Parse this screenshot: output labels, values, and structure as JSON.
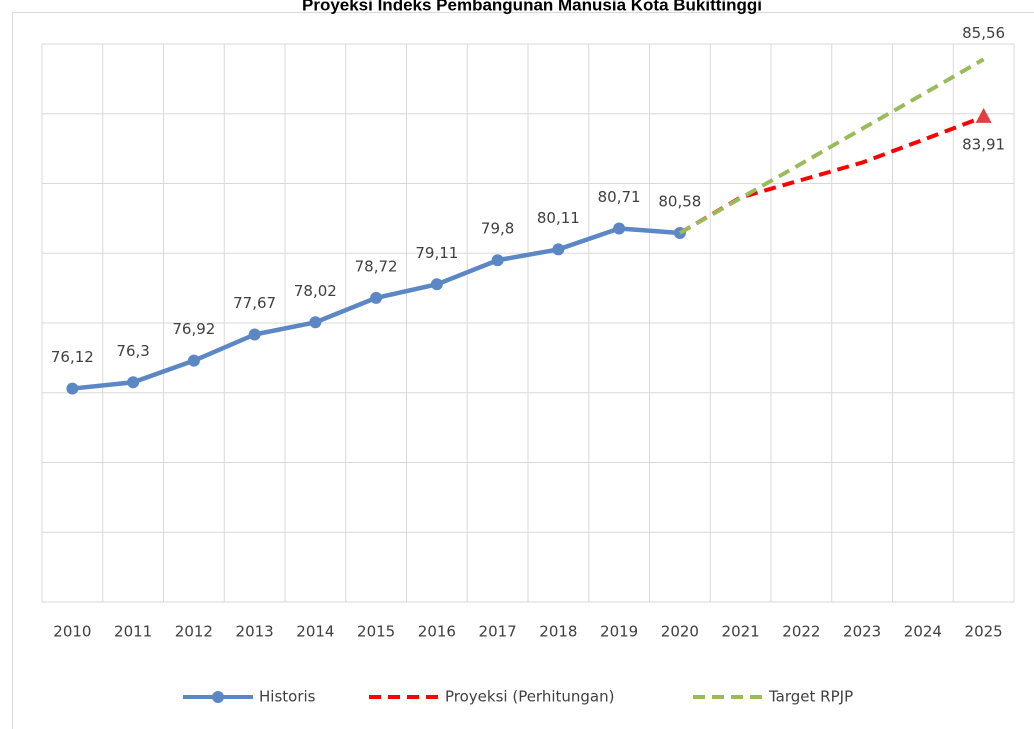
{
  "chart_data": {
    "type": "line",
    "title": "Proyeksi Indeks Pembangunan Manusia Kota Bukittinggi",
    "categories": [
      "2010",
      "2011",
      "2012",
      "2013",
      "2014",
      "2015",
      "2016",
      "2017",
      "2018",
      "2019",
      "2020",
      "2021",
      "2022",
      "2023",
      "2024",
      "2025"
    ],
    "series": [
      {
        "name": "Historis",
        "color": "#5b87c5",
        "dash": false,
        "marker": "circle",
        "values": [
          76.12,
          76.3,
          76.92,
          77.67,
          78.02,
          78.72,
          79.11,
          79.8,
          80.11,
          80.71,
          80.58,
          null,
          null,
          null,
          null,
          null
        ],
        "value_labels": [
          "76,12",
          "76,3",
          "76,92",
          "77,67",
          "78,02",
          "78,72",
          "79,11",
          "79,8",
          "80,11",
          "80,71",
          "80,58",
          null,
          null,
          null,
          null,
          null
        ]
      },
      {
        "name": "Proyeksi (Perhitungan)",
        "color": "#ff0000",
        "dash": true,
        "marker": "triangle-last",
        "values": [
          null,
          null,
          null,
          null,
          null,
          null,
          null,
          null,
          null,
          null,
          80.58,
          81.6,
          82.1,
          82.6,
          83.25,
          83.91
        ],
        "value_labels": [
          null,
          null,
          null,
          null,
          null,
          null,
          null,
          null,
          null,
          null,
          null,
          null,
          null,
          null,
          null,
          "83,91"
        ]
      },
      {
        "name": "Target RPJP",
        "color": "#9bbb59",
        "dash": true,
        "marker": "none",
        "values": [
          null,
          null,
          null,
          null,
          null,
          null,
          null,
          null,
          null,
          null,
          80.58,
          81.58,
          82.57,
          83.57,
          84.56,
          85.56
        ],
        "value_labels": [
          null,
          null,
          null,
          null,
          null,
          null,
          null,
          null,
          null,
          null,
          null,
          null,
          null,
          null,
          null,
          "85,56"
        ]
      }
    ],
    "ylim": [
      70,
      86
    ],
    "yticks": [
      70,
      72,
      74,
      76,
      78,
      80,
      82,
      84,
      86
    ],
    "grid": true,
    "legend": "bottom"
  }
}
